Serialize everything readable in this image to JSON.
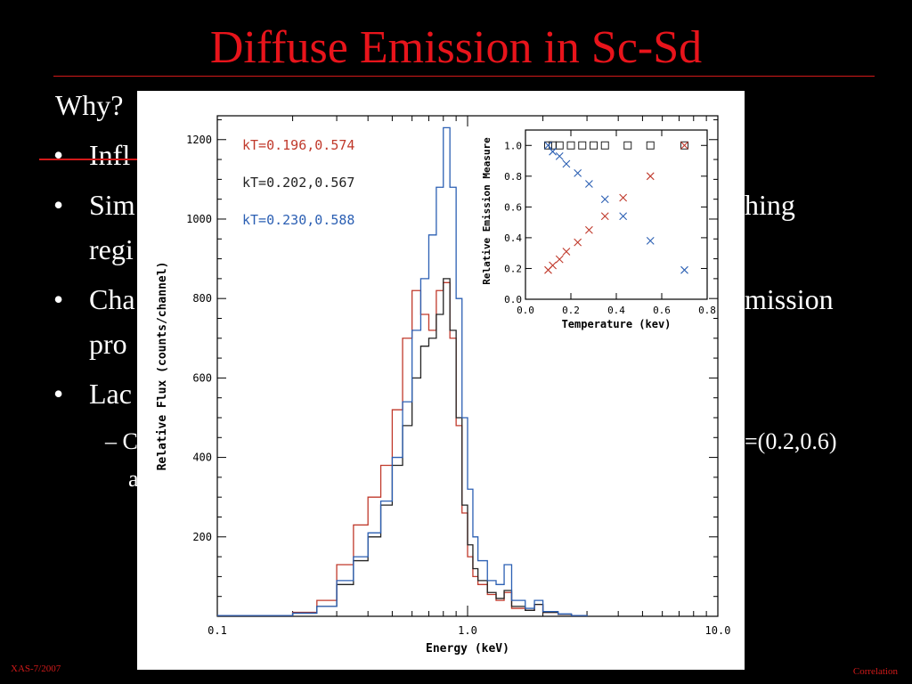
{
  "slide": {
    "title": "Diffuse Emission in Sc-Sd",
    "lines": [
      "Why?",
      "•",
      "Infl",
      "•",
      "Sim",
      "hing",
      "regi",
      "•",
      "Cha",
      "mission",
      "pro",
      "•",
      "Lac",
      "– C",
      "=(0.2,0.6)",
      "a"
    ],
    "footer_left": "XAS-7/2007",
    "footer_right": "Correlation"
  },
  "chart_data": [
    {
      "type": "line",
      "xlabel": "Energy (keV)",
      "ylabel": "Relative Flux (counts/channel)",
      "xscale": "log",
      "xlim": [
        0.1,
        10.0
      ],
      "ylim": [
        0,
        1260
      ],
      "xticks": [
        "0.1",
        "1.0",
        "10.0"
      ],
      "yticks": [
        "200",
        "400",
        "600",
        "800",
        "1000",
        "1200"
      ],
      "legend_position": "top-left",
      "series": [
        {
          "name": "kT=0.196,0.574",
          "color": "#c0392b",
          "x": [
            0.1,
            0.2,
            0.25,
            0.3,
            0.35,
            0.4,
            0.45,
            0.5,
            0.55,
            0.6,
            0.65,
            0.7,
            0.75,
            0.8,
            0.85,
            0.9,
            0.95,
            1.0,
            1.05,
            1.1,
            1.2,
            1.3,
            1.4,
            1.5,
            1.7,
            1.85,
            2.0,
            2.3,
            2.6,
            3.0
          ],
          "y": [
            2,
            10,
            40,
            130,
            230,
            300,
            380,
            520,
            700,
            820,
            760,
            720,
            820,
            840,
            700,
            480,
            260,
            150,
            100,
            80,
            55,
            40,
            60,
            20,
            15,
            30,
            10,
            5,
            2,
            0
          ]
        },
        {
          "name": "kT=0.202,0.567",
          "color": "#222222",
          "x": [
            0.1,
            0.2,
            0.25,
            0.3,
            0.35,
            0.4,
            0.45,
            0.5,
            0.55,
            0.6,
            0.65,
            0.7,
            0.75,
            0.8,
            0.85,
            0.9,
            0.95,
            1.0,
            1.05,
            1.1,
            1.2,
            1.3,
            1.4,
            1.5,
            1.7,
            1.85,
            2.0,
            2.3,
            2.6,
            3.0
          ],
          "y": [
            2,
            8,
            25,
            80,
            140,
            200,
            280,
            380,
            480,
            600,
            680,
            700,
            760,
            850,
            720,
            500,
            280,
            180,
            120,
            90,
            60,
            45,
            65,
            25,
            15,
            30,
            10,
            5,
            2,
            0
          ]
        },
        {
          "name": "kT=0.230,0.588",
          "color": "#2b5fb3",
          "x": [
            0.1,
            0.2,
            0.25,
            0.3,
            0.35,
            0.4,
            0.45,
            0.5,
            0.55,
            0.6,
            0.65,
            0.7,
            0.75,
            0.8,
            0.85,
            0.9,
            0.95,
            1.0,
            1.05,
            1.1,
            1.2,
            1.3,
            1.4,
            1.5,
            1.7,
            1.85,
            2.0,
            2.3,
            2.6,
            3.0
          ],
          "y": [
            2,
            8,
            25,
            90,
            150,
            210,
            290,
            400,
            540,
            720,
            850,
            960,
            1080,
            1230,
            1080,
            800,
            500,
            320,
            200,
            140,
            90,
            80,
            130,
            40,
            20,
            40,
            12,
            6,
            2,
            0
          ]
        }
      ]
    },
    {
      "type": "scatter",
      "xlabel": "Temperature (kev)",
      "ylabel": "Relative Emission Measure",
      "xlim": [
        0.0,
        0.8
      ],
      "ylim": [
        0.0,
        1.1
      ],
      "xticks": [
        "0.0",
        "0.2",
        "0.4",
        "0.6",
        "0.8"
      ],
      "yticks": [
        "0.0",
        "0.2",
        "0.4",
        "0.6",
        "0.8",
        "1.0"
      ],
      "series": [
        {
          "marker": "square",
          "color": "#222222",
          "x": [
            0.1,
            0.12,
            0.15,
            0.2,
            0.25,
            0.3,
            0.35,
            0.45,
            0.55,
            0.7
          ],
          "y": [
            1.0,
            1.0,
            1.0,
            1.0,
            1.0,
            1.0,
            1.0,
            1.0,
            1.0,
            1.0
          ]
        },
        {
          "marker": "x",
          "color": "#2b5fb3",
          "x": [
            0.1,
            0.12,
            0.15,
            0.18,
            0.23,
            0.28,
            0.35,
            0.43,
            0.55,
            0.7
          ],
          "y": [
            1.0,
            0.96,
            0.93,
            0.88,
            0.82,
            0.75,
            0.65,
            0.54,
            0.38,
            0.19
          ]
        },
        {
          "marker": "x",
          "color": "#c0392b",
          "x": [
            0.1,
            0.12,
            0.15,
            0.18,
            0.23,
            0.28,
            0.35,
            0.43,
            0.55,
            0.7
          ],
          "y": [
            0.19,
            0.22,
            0.26,
            0.31,
            0.37,
            0.45,
            0.54,
            0.66,
            0.8,
            1.0
          ]
        }
      ]
    }
  ]
}
